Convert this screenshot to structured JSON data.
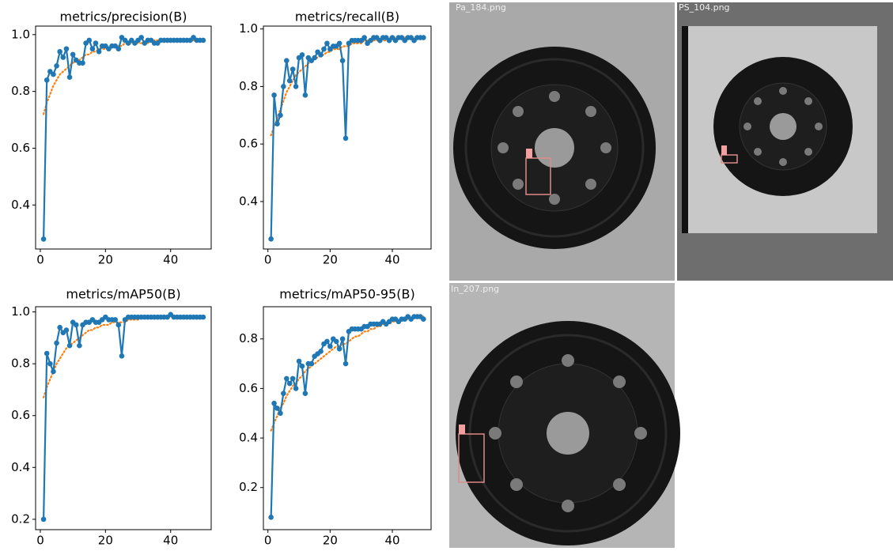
{
  "chart_data": [
    {
      "type": "line",
      "title": "metrics/precision(B)",
      "x": [
        1,
        2,
        3,
        4,
        5,
        6,
        7,
        8,
        9,
        10,
        11,
        12,
        13,
        14,
        15,
        16,
        17,
        18,
        19,
        20,
        21,
        22,
        23,
        24,
        25,
        26,
        27,
        28,
        29,
        30,
        31,
        32,
        33,
        34,
        35,
        36,
        37,
        38,
        39,
        40,
        41,
        42,
        43,
        44,
        45,
        46,
        47,
        48,
        49,
        50
      ],
      "series": [
        {
          "color": "#1f77b4",
          "marker": true,
          "linestyle": "solid",
          "values": [
            0.28,
            0.84,
            0.87,
            0.86,
            0.89,
            0.94,
            0.92,
            0.95,
            0.85,
            0.93,
            0.91,
            0.9,
            0.9,
            0.97,
            0.98,
            0.95,
            0.97,
            0.94,
            0.96,
            0.96,
            0.95,
            0.96,
            0.96,
            0.95,
            0.99,
            0.98,
            0.97,
            0.98,
            0.97,
            0.98,
            0.99,
            0.97,
            0.98,
            0.98,
            0.97,
            0.97,
            0.98,
            0.98,
            0.98,
            0.98,
            0.98,
            0.98,
            0.98,
            0.98,
            0.98,
            0.98,
            0.99,
            0.98,
            0.98,
            0.98
          ]
        },
        {
          "color": "#ff7f0e",
          "marker": false,
          "linestyle": "dotted",
          "values": [
            0.72,
            0.76,
            0.79,
            0.82,
            0.84,
            0.86,
            0.87,
            0.88,
            0.89,
            0.9,
            0.91,
            0.91,
            0.92,
            0.93,
            0.93,
            0.94,
            0.94,
            0.95,
            0.95,
            0.95,
            0.95,
            0.96,
            0.96,
            0.96,
            0.96,
            0.97,
            0.97,
            0.97,
            0.97,
            0.97,
            0.97,
            0.97,
            0.97,
            0.98,
            0.98,
            0.98,
            0.98,
            0.98,
            0.98,
            0.98,
            0.98,
            0.98,
            0.98,
            0.98,
            0.98,
            0.98,
            0.98,
            0.98,
            0.98,
            0.98
          ]
        }
      ],
      "xlim": [
        -1.45,
        52.45
      ],
      "xticks": [
        0,
        20,
        40
      ],
      "ylim": [
        0.245,
        1.03
      ],
      "yticks": [
        0.4,
        0.6,
        0.8,
        {
          "value": 1,
          "label": "1.0"
        }
      ],
      "grid": false
    },
    {
      "type": "line",
      "title": "metrics/recall(B)",
      "x": [
        1,
        2,
        3,
        4,
        5,
        6,
        7,
        8,
        9,
        10,
        11,
        12,
        13,
        14,
        15,
        16,
        17,
        18,
        19,
        20,
        21,
        22,
        23,
        24,
        25,
        26,
        27,
        28,
        29,
        30,
        31,
        32,
        33,
        34,
        35,
        36,
        37,
        38,
        39,
        40,
        41,
        42,
        43,
        44,
        45,
        46,
        47,
        48,
        49,
        50
      ],
      "series": [
        {
          "color": "#1f77b4",
          "marker": true,
          "linestyle": "solid",
          "values": [
            0.27,
            0.77,
            0.67,
            0.7,
            0.8,
            0.89,
            0.82,
            0.86,
            0.8,
            0.9,
            0.91,
            0.77,
            0.9,
            0.89,
            0.9,
            0.92,
            0.91,
            0.93,
            0.95,
            0.93,
            0.94,
            0.94,
            0.95,
            0.89,
            0.62,
            0.95,
            0.96,
            0.96,
            0.96,
            0.96,
            0.97,
            0.95,
            0.96,
            0.97,
            0.97,
            0.96,
            0.97,
            0.97,
            0.96,
            0.97,
            0.96,
            0.97,
            0.97,
            0.96,
            0.97,
            0.97,
            0.96,
            0.97,
            0.97,
            0.97
          ]
        },
        {
          "color": "#ff7f0e",
          "marker": false,
          "linestyle": "dotted",
          "values": [
            0.63,
            0.66,
            0.69,
            0.72,
            0.75,
            0.78,
            0.8,
            0.82,
            0.84,
            0.85,
            0.86,
            0.87,
            0.88,
            0.89,
            0.9,
            0.9,
            0.91,
            0.91,
            0.92,
            0.92,
            0.93,
            0.93,
            0.93,
            0.94,
            0.94,
            0.94,
            0.95,
            0.95,
            0.95,
            0.95,
            0.96,
            0.96,
            0.96,
            0.96,
            0.96,
            0.96,
            0.96,
            0.96,
            0.97,
            0.97,
            0.97,
            0.97,
            0.97,
            0.97,
            0.97,
            0.97,
            0.97,
            0.97,
            0.97,
            0.97
          ]
        }
      ],
      "xlim": [
        -1.45,
        52.45
      ],
      "xticks": [
        0,
        20,
        40
      ],
      "ylim": [
        0.235,
        1.01
      ],
      "yticks": [
        0.4,
        0.6,
        0.8,
        {
          "value": 1,
          "label": "1.0"
        }
      ],
      "grid": false
    },
    {
      "type": "line",
      "title": "metrics/mAP50(B)",
      "x": [
        1,
        2,
        3,
        4,
        5,
        6,
        7,
        8,
        9,
        10,
        11,
        12,
        13,
        14,
        15,
        16,
        17,
        18,
        19,
        20,
        21,
        22,
        23,
        24,
        25,
        26,
        27,
        28,
        29,
        30,
        31,
        32,
        33,
        34,
        35,
        36,
        37,
        38,
        39,
        40,
        41,
        42,
        43,
        44,
        45,
        46,
        47,
        48,
        49,
        50
      ],
      "series": [
        {
          "color": "#1f77b4",
          "marker": true,
          "linestyle": "solid",
          "values": [
            0.2,
            0.84,
            0.8,
            0.77,
            0.88,
            0.94,
            0.92,
            0.93,
            0.87,
            0.96,
            0.95,
            0.87,
            0.95,
            0.96,
            0.96,
            0.97,
            0.96,
            0.96,
            0.97,
            0.98,
            0.97,
            0.97,
            0.97,
            0.95,
            0.83,
            0.97,
            0.98,
            0.98,
            0.98,
            0.98,
            0.98,
            0.98,
            0.98,
            0.98,
            0.98,
            0.98,
            0.98,
            0.98,
            0.98,
            0.99,
            0.98,
            0.98,
            0.98,
            0.98,
            0.98,
            0.98,
            0.98,
            0.98,
            0.98,
            0.98
          ]
        },
        {
          "color": "#ff7f0e",
          "marker": false,
          "linestyle": "dotted",
          "values": [
            0.67,
            0.71,
            0.74,
            0.77,
            0.8,
            0.82,
            0.84,
            0.86,
            0.87,
            0.88,
            0.89,
            0.9,
            0.91,
            0.92,
            0.93,
            0.93,
            0.94,
            0.94,
            0.95,
            0.95,
            0.95,
            0.96,
            0.96,
            0.96,
            0.96,
            0.96,
            0.97,
            0.97,
            0.97,
            0.97,
            0.98,
            0.98,
            0.98,
            0.98,
            0.98,
            0.98,
            0.98,
            0.98,
            0.98,
            0.98,
            0.98,
            0.98,
            0.98,
            0.98,
            0.98,
            0.98,
            0.98,
            0.98,
            0.98,
            0.98
          ]
        }
      ],
      "xlim": [
        -1.45,
        52.45
      ],
      "xticks": [
        0,
        20,
        40
      ],
      "ylim": [
        0.16,
        1.02
      ],
      "yticks": [
        0.2,
        0.4,
        0.6,
        0.8,
        {
          "value": 1,
          "label": "1.0"
        }
      ],
      "grid": false
    },
    {
      "type": "line",
      "title": "metrics/mAP50-95(B)",
      "x": [
        1,
        2,
        3,
        4,
        5,
        6,
        7,
        8,
        9,
        10,
        11,
        12,
        13,
        14,
        15,
        16,
        17,
        18,
        19,
        20,
        21,
        22,
        23,
        24,
        25,
        26,
        27,
        28,
        29,
        30,
        31,
        32,
        33,
        34,
        35,
        36,
        37,
        38,
        39,
        40,
        41,
        42,
        43,
        44,
        45,
        46,
        47,
        48,
        49,
        50
      ],
      "series": [
        {
          "color": "#1f77b4",
          "marker": true,
          "linestyle": "solid",
          "values": [
            0.08,
            0.54,
            0.52,
            0.5,
            0.58,
            0.64,
            0.62,
            0.64,
            0.6,
            0.71,
            0.69,
            0.58,
            0.7,
            0.7,
            0.73,
            0.74,
            0.75,
            0.78,
            0.79,
            0.77,
            0.8,
            0.79,
            0.76,
            0.8,
            0.7,
            0.83,
            0.84,
            0.84,
            0.84,
            0.84,
            0.85,
            0.85,
            0.86,
            0.86,
            0.86,
            0.86,
            0.87,
            0.86,
            0.87,
            0.88,
            0.88,
            0.87,
            0.88,
            0.88,
            0.89,
            0.88,
            0.89,
            0.89,
            0.89,
            0.88
          ]
        },
        {
          "color": "#ff7f0e",
          "marker": false,
          "linestyle": "dotted",
          "values": [
            0.43,
            0.46,
            0.49,
            0.52,
            0.54,
            0.57,
            0.59,
            0.61,
            0.62,
            0.64,
            0.65,
            0.67,
            0.68,
            0.69,
            0.7,
            0.71,
            0.72,
            0.73,
            0.74,
            0.75,
            0.76,
            0.77,
            0.77,
            0.78,
            0.78,
            0.79,
            0.8,
            0.81,
            0.81,
            0.82,
            0.83,
            0.83,
            0.84,
            0.84,
            0.85,
            0.85,
            0.86,
            0.86,
            0.86,
            0.87,
            0.87,
            0.87,
            0.88,
            0.88,
            0.88,
            0.88,
            0.89,
            0.89,
            0.89,
            0.89
          ]
        }
      ],
      "xlim": [
        -1.45,
        52.45
      ],
      "xticks": [
        0,
        20,
        40
      ],
      "ylim": [
        0.03,
        0.93
      ],
      "yticks": [
        0.2,
        0.4,
        0.6,
        0.8
      ],
      "grid": false
    }
  ],
  "images": [
    {
      "label": "Pa_184.png"
    },
    {
      "label": "PS_104.png"
    },
    {
      "label": "In_207.png"
    }
  ]
}
